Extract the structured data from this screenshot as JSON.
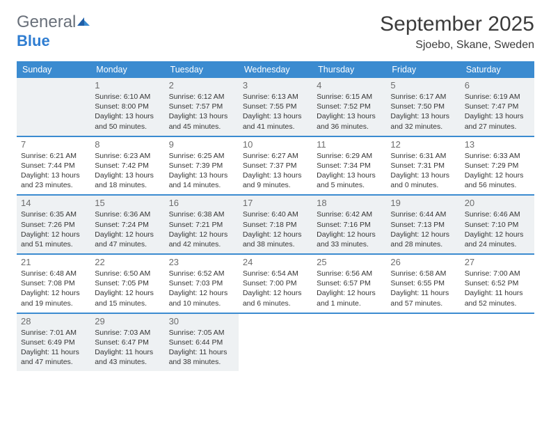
{
  "logo": {
    "line1": "General",
    "line2": "Blue"
  },
  "title": "September 2025",
  "location": "Sjoebo, Skane, Sweden",
  "colors": {
    "header_bg": "#3b8bd0",
    "header_text": "#ffffff",
    "shaded_bg": "#eef1f3",
    "text": "#333333",
    "logo_gray": "#69707a",
    "logo_blue": "#2f7dd1",
    "border": "#3b8bd0"
  },
  "dayHeaders": [
    "Sunday",
    "Monday",
    "Tuesday",
    "Wednesday",
    "Thursday",
    "Friday",
    "Saturday"
  ],
  "weeks": [
    [
      {
        "day": "",
        "shaded": true,
        "lines": []
      },
      {
        "day": "1",
        "shaded": true,
        "lines": [
          "Sunrise: 6:10 AM",
          "Sunset: 8:00 PM",
          "Daylight: 13 hours and 50 minutes."
        ]
      },
      {
        "day": "2",
        "shaded": true,
        "lines": [
          "Sunrise: 6:12 AM",
          "Sunset: 7:57 PM",
          "Daylight: 13 hours and 45 minutes."
        ]
      },
      {
        "day": "3",
        "shaded": true,
        "lines": [
          "Sunrise: 6:13 AM",
          "Sunset: 7:55 PM",
          "Daylight: 13 hours and 41 minutes."
        ]
      },
      {
        "day": "4",
        "shaded": true,
        "lines": [
          "Sunrise: 6:15 AM",
          "Sunset: 7:52 PM",
          "Daylight: 13 hours and 36 minutes."
        ]
      },
      {
        "day": "5",
        "shaded": true,
        "lines": [
          "Sunrise: 6:17 AM",
          "Sunset: 7:50 PM",
          "Daylight: 13 hours and 32 minutes."
        ]
      },
      {
        "day": "6",
        "shaded": true,
        "lines": [
          "Sunrise: 6:19 AM",
          "Sunset: 7:47 PM",
          "Daylight: 13 hours and 27 minutes."
        ]
      }
    ],
    [
      {
        "day": "7",
        "shaded": false,
        "lines": [
          "Sunrise: 6:21 AM",
          "Sunset: 7:44 PM",
          "Daylight: 13 hours and 23 minutes."
        ]
      },
      {
        "day": "8",
        "shaded": false,
        "lines": [
          "Sunrise: 6:23 AM",
          "Sunset: 7:42 PM",
          "Daylight: 13 hours and 18 minutes."
        ]
      },
      {
        "day": "9",
        "shaded": false,
        "lines": [
          "Sunrise: 6:25 AM",
          "Sunset: 7:39 PM",
          "Daylight: 13 hours and 14 minutes."
        ]
      },
      {
        "day": "10",
        "shaded": false,
        "lines": [
          "Sunrise: 6:27 AM",
          "Sunset: 7:37 PM",
          "Daylight: 13 hours and 9 minutes."
        ]
      },
      {
        "day": "11",
        "shaded": false,
        "lines": [
          "Sunrise: 6:29 AM",
          "Sunset: 7:34 PM",
          "Daylight: 13 hours and 5 minutes."
        ]
      },
      {
        "day": "12",
        "shaded": false,
        "lines": [
          "Sunrise: 6:31 AM",
          "Sunset: 7:31 PM",
          "Daylight: 13 hours and 0 minutes."
        ]
      },
      {
        "day": "13",
        "shaded": false,
        "lines": [
          "Sunrise: 6:33 AM",
          "Sunset: 7:29 PM",
          "Daylight: 12 hours and 56 minutes."
        ]
      }
    ],
    [
      {
        "day": "14",
        "shaded": true,
        "lines": [
          "Sunrise: 6:35 AM",
          "Sunset: 7:26 PM",
          "Daylight: 12 hours and 51 minutes."
        ]
      },
      {
        "day": "15",
        "shaded": true,
        "lines": [
          "Sunrise: 6:36 AM",
          "Sunset: 7:24 PM",
          "Daylight: 12 hours and 47 minutes."
        ]
      },
      {
        "day": "16",
        "shaded": true,
        "lines": [
          "Sunrise: 6:38 AM",
          "Sunset: 7:21 PM",
          "Daylight: 12 hours and 42 minutes."
        ]
      },
      {
        "day": "17",
        "shaded": true,
        "lines": [
          "Sunrise: 6:40 AM",
          "Sunset: 7:18 PM",
          "Daylight: 12 hours and 38 minutes."
        ]
      },
      {
        "day": "18",
        "shaded": true,
        "lines": [
          "Sunrise: 6:42 AM",
          "Sunset: 7:16 PM",
          "Daylight: 12 hours and 33 minutes."
        ]
      },
      {
        "day": "19",
        "shaded": true,
        "lines": [
          "Sunrise: 6:44 AM",
          "Sunset: 7:13 PM",
          "Daylight: 12 hours and 28 minutes."
        ]
      },
      {
        "day": "20",
        "shaded": true,
        "lines": [
          "Sunrise: 6:46 AM",
          "Sunset: 7:10 PM",
          "Daylight: 12 hours and 24 minutes."
        ]
      }
    ],
    [
      {
        "day": "21",
        "shaded": false,
        "lines": [
          "Sunrise: 6:48 AM",
          "Sunset: 7:08 PM",
          "Daylight: 12 hours and 19 minutes."
        ]
      },
      {
        "day": "22",
        "shaded": false,
        "lines": [
          "Sunrise: 6:50 AM",
          "Sunset: 7:05 PM",
          "Daylight: 12 hours and 15 minutes."
        ]
      },
      {
        "day": "23",
        "shaded": false,
        "lines": [
          "Sunrise: 6:52 AM",
          "Sunset: 7:03 PM",
          "Daylight: 12 hours and 10 minutes."
        ]
      },
      {
        "day": "24",
        "shaded": false,
        "lines": [
          "Sunrise: 6:54 AM",
          "Sunset: 7:00 PM",
          "Daylight: 12 hours and 6 minutes."
        ]
      },
      {
        "day": "25",
        "shaded": false,
        "lines": [
          "Sunrise: 6:56 AM",
          "Sunset: 6:57 PM",
          "Daylight: 12 hours and 1 minute."
        ]
      },
      {
        "day": "26",
        "shaded": false,
        "lines": [
          "Sunrise: 6:58 AM",
          "Sunset: 6:55 PM",
          "Daylight: 11 hours and 57 minutes."
        ]
      },
      {
        "day": "27",
        "shaded": false,
        "lines": [
          "Sunrise: 7:00 AM",
          "Sunset: 6:52 PM",
          "Daylight: 11 hours and 52 minutes."
        ]
      }
    ],
    [
      {
        "day": "28",
        "shaded": true,
        "lines": [
          "Sunrise: 7:01 AM",
          "Sunset: 6:49 PM",
          "Daylight: 11 hours and 47 minutes."
        ]
      },
      {
        "day": "29",
        "shaded": true,
        "lines": [
          "Sunrise: 7:03 AM",
          "Sunset: 6:47 PM",
          "Daylight: 11 hours and 43 minutes."
        ]
      },
      {
        "day": "30",
        "shaded": true,
        "lines": [
          "Sunrise: 7:05 AM",
          "Sunset: 6:44 PM",
          "Daylight: 11 hours and 38 minutes."
        ]
      },
      {
        "day": "",
        "shaded": false,
        "lines": []
      },
      {
        "day": "",
        "shaded": false,
        "lines": []
      },
      {
        "day": "",
        "shaded": false,
        "lines": []
      },
      {
        "day": "",
        "shaded": false,
        "lines": []
      }
    ]
  ]
}
